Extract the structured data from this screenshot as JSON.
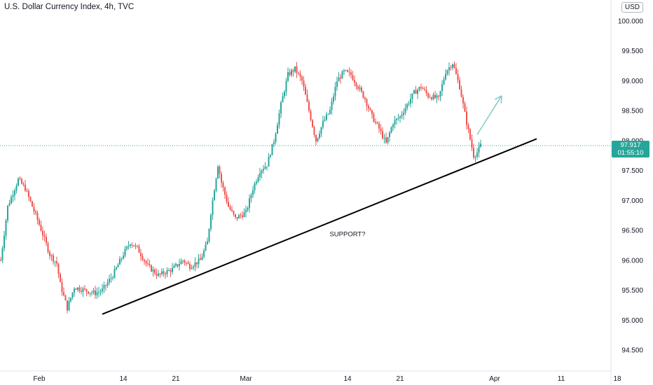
{
  "header": {
    "title": "U.S. Dollar Currency Index, 4h, TVC",
    "currency": "USD"
  },
  "last_price": {
    "value": "97.917",
    "countdown": "01:55:10"
  },
  "colors": {
    "up": "#26a69a",
    "down": "#ef5350",
    "line": "#000000",
    "arrow": "#7fcbc3",
    "axis_text": "#131722"
  },
  "chart_data": {
    "type": "candlestick",
    "title": "U.S. Dollar Currency Index, 4h, TVC",
    "ylim": [
      94.15,
      100.35
    ],
    "y_ticks": [
      "100.000",
      "99.500",
      "99.000",
      "98.500",
      "98.000",
      "97.500",
      "97.000",
      "96.500",
      "96.000",
      "95.500",
      "95.000",
      "94.500"
    ],
    "y_tick_values": [
      100.0,
      99.5,
      99.0,
      98.5,
      98.0,
      97.5,
      97.0,
      96.5,
      96.0,
      95.5,
      95.0,
      94.5
    ],
    "x_ticks": [
      "Feb",
      "14",
      "21",
      "Mar",
      "14",
      "21",
      "Apr",
      "11",
      "18"
    ],
    "x_tick_index": [
      22,
      70,
      100,
      140,
      198,
      228,
      282,
      320,
      352
    ],
    "current_price": 97.917,
    "trendline": {
      "x": [
        58,
        306
      ],
      "y": [
        95.1,
        98.03
      ],
      "label": "SUPPORT?"
    },
    "arrow": {
      "from": [
        272,
        98.1
      ],
      "to": [
        286,
        98.75
      ]
    },
    "price_path": [
      [
        0,
        96.0
      ],
      [
        4,
        96.9
      ],
      [
        10,
        97.35
      ],
      [
        14,
        97.2
      ],
      [
        18,
        96.9
      ],
      [
        22,
        96.6
      ],
      [
        28,
        96.1
      ],
      [
        32,
        95.95
      ],
      [
        34,
        95.6
      ],
      [
        38,
        95.2
      ],
      [
        42,
        95.55
      ],
      [
        48,
        95.5
      ],
      [
        54,
        95.45
      ],
      [
        58,
        95.5
      ],
      [
        64,
        95.75
      ],
      [
        70,
        96.1
      ],
      [
        74,
        96.3
      ],
      [
        78,
        96.2
      ],
      [
        84,
        95.9
      ],
      [
        90,
        95.75
      ],
      [
        98,
        95.85
      ],
      [
        104,
        96.0
      ],
      [
        108,
        95.9
      ],
      [
        114,
        96.0
      ],
      [
        118,
        96.3
      ],
      [
        120,
        96.8
      ],
      [
        124,
        97.6
      ],
      [
        126,
        97.3
      ],
      [
        130,
        96.9
      ],
      [
        134,
        96.7
      ],
      [
        140,
        96.8
      ],
      [
        144,
        97.2
      ],
      [
        148,
        97.5
      ],
      [
        152,
        97.6
      ],
      [
        156,
        98.0
      ],
      [
        160,
        98.6
      ],
      [
        164,
        99.1
      ],
      [
        168,
        99.2
      ],
      [
        172,
        99.0
      ],
      [
        176,
        98.5
      ],
      [
        180,
        98.0
      ],
      [
        184,
        98.3
      ],
      [
        188,
        98.5
      ],
      [
        192,
        99.0
      ],
      [
        196,
        99.15
      ],
      [
        200,
        99.1
      ],
      [
        204,
        98.9
      ],
      [
        208,
        98.7
      ],
      [
        212,
        98.4
      ],
      [
        216,
        98.2
      ],
      [
        220,
        97.95
      ],
      [
        224,
        98.3
      ],
      [
        228,
        98.4
      ],
      [
        232,
        98.6
      ],
      [
        236,
        98.8
      ],
      [
        240,
        98.9
      ],
      [
        244,
        98.75
      ],
      [
        250,
        98.7
      ],
      [
        254,
        99.15
      ],
      [
        258,
        99.3
      ],
      [
        262,
        98.9
      ],
      [
        266,
        98.3
      ],
      [
        270,
        97.75
      ],
      [
        272,
        97.8
      ],
      [
        274,
        97.92
      ]
    ]
  }
}
